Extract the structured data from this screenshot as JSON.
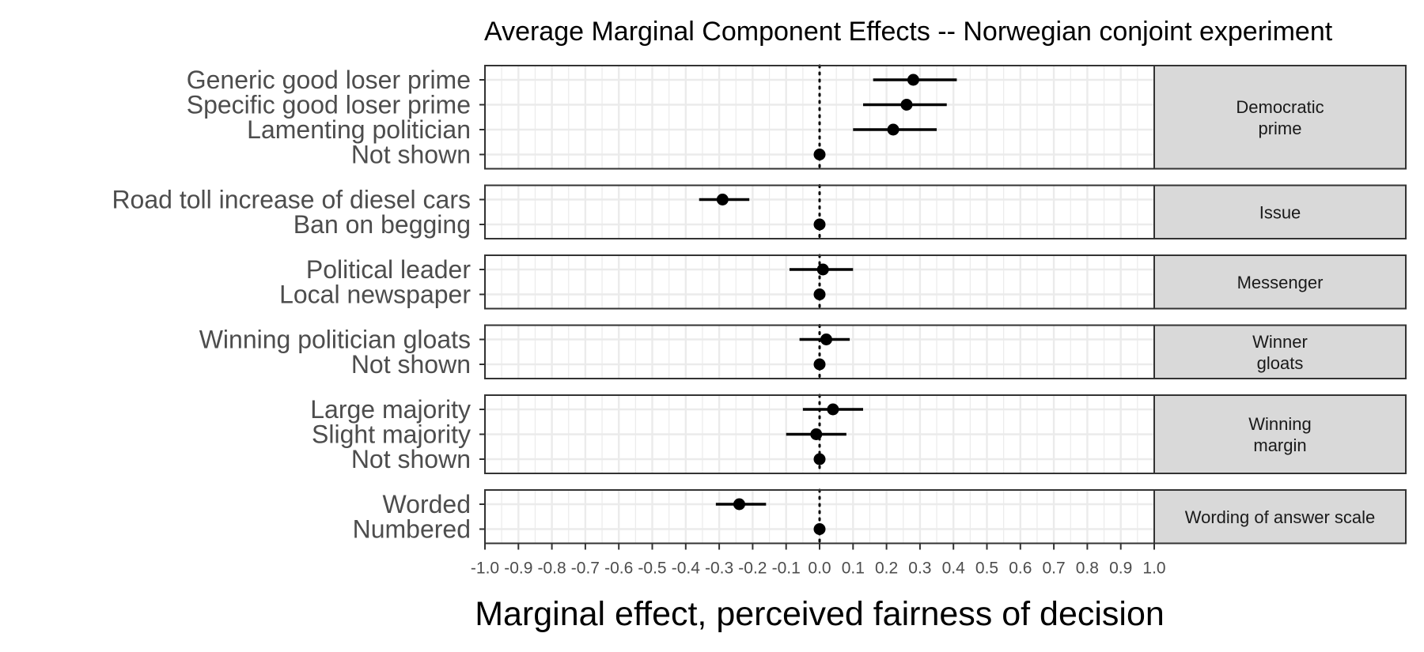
{
  "chart_data": {
    "type": "scatter",
    "title": "Average Marginal Component Effects -- Norwegian conjoint experiment",
    "xlabel": "Marginal effect, perceived fairness of decision",
    "ylabel": "",
    "xlim": [
      -1.0,
      1.0
    ],
    "xticks": [
      "-1.0",
      "-0.9",
      "-0.8",
      "-0.7",
      "-0.6",
      "-0.5",
      "-0.4",
      "-0.3",
      "-0.2",
      "-0.1",
      "0.0",
      "0.1",
      "0.2",
      "0.3",
      "0.4",
      "0.5",
      "0.6",
      "0.7",
      "0.8",
      "0.9",
      "1.0"
    ],
    "reference_line": 0.0,
    "grid": true,
    "facet_position": "right",
    "colors": {
      "point": "#000000",
      "strip_fill": "#d9d9d9",
      "grid": "#ebebeb",
      "panel_border": "#333333"
    },
    "panels": [
      {
        "strip": [
          "Democratic",
          "prime"
        ],
        "rows": [
          {
            "label": "Generic good loser prime",
            "estimate": 0.28,
            "lower": 0.16,
            "upper": 0.41
          },
          {
            "label": "Specific good loser prime",
            "estimate": 0.26,
            "lower": 0.13,
            "upper": 0.38
          },
          {
            "label": "Lamenting politician",
            "estimate": 0.22,
            "lower": 0.1,
            "upper": 0.35
          },
          {
            "label": "Not shown",
            "estimate": 0.0,
            "lower": 0.0,
            "upper": 0.0
          }
        ]
      },
      {
        "strip": [
          "Issue"
        ],
        "rows": [
          {
            "label": "Road toll increase of diesel cars",
            "estimate": -0.29,
            "lower": -0.36,
            "upper": -0.21
          },
          {
            "label": "Ban on begging",
            "estimate": 0.0,
            "lower": 0.0,
            "upper": 0.0
          }
        ]
      },
      {
        "strip": [
          "Messenger"
        ],
        "rows": [
          {
            "label": "Political leader",
            "estimate": 0.01,
            "lower": -0.09,
            "upper": 0.1
          },
          {
            "label": "Local newspaper",
            "estimate": 0.0,
            "lower": 0.0,
            "upper": 0.0
          }
        ]
      },
      {
        "strip": [
          "Winner",
          "gloats"
        ],
        "rows": [
          {
            "label": "Winning politician gloats",
            "estimate": 0.02,
            "lower": -0.06,
            "upper": 0.09
          },
          {
            "label": "Not shown",
            "estimate": 0.0,
            "lower": 0.0,
            "upper": 0.0
          }
        ]
      },
      {
        "strip": [
          "Winning",
          "margin"
        ],
        "rows": [
          {
            "label": "Large majority",
            "estimate": 0.04,
            "lower": -0.05,
            "upper": 0.13
          },
          {
            "label": "Slight majority",
            "estimate": -0.01,
            "lower": -0.1,
            "upper": 0.08
          },
          {
            "label": "Not shown",
            "estimate": 0.0,
            "lower": 0.0,
            "upper": 0.0
          }
        ]
      },
      {
        "strip": [
          "Wording of answer scale"
        ],
        "rows": [
          {
            "label": "Worded",
            "estimate": -0.24,
            "lower": -0.31,
            "upper": -0.16
          },
          {
            "label": "Numbered",
            "estimate": 0.0,
            "lower": 0.0,
            "upper": 0.0
          }
        ]
      }
    ]
  }
}
